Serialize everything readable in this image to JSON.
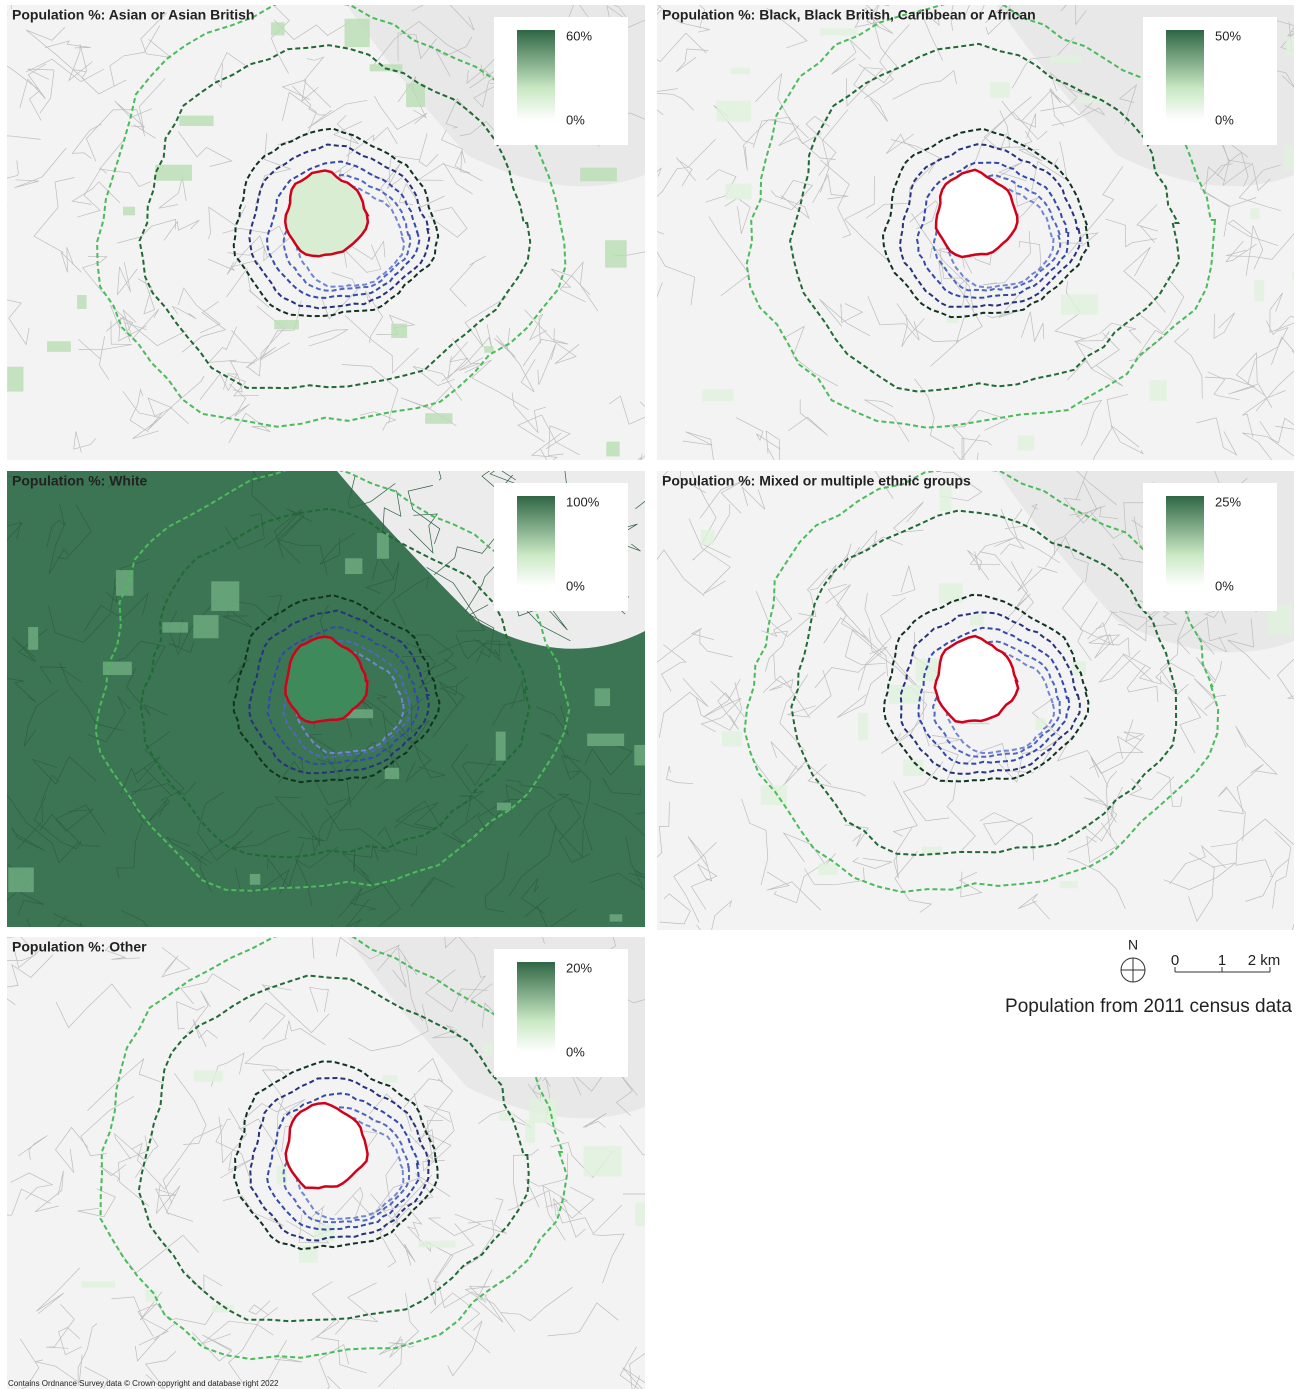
{
  "panels": [
    {
      "title": "Population %: Asian or Asian British",
      "legend": {
        "max": "60%",
        "min": "0%"
      }
    },
    {
      "title": "Population %: Black, Black British, Caribbean or African",
      "legend": {
        "max": "50%",
        "min": "0%"
      }
    },
    {
      "title": "Population %: White",
      "legend": {
        "max": "100%",
        "min": "0%"
      }
    },
    {
      "title": "Population %: Mixed or multiple ethnic groups",
      "legend": {
        "max": "25%",
        "min": "0%"
      }
    },
    {
      "title": "Population %: Other",
      "legend": {
        "max": "20%",
        "min": "0%"
      }
    }
  ],
  "north": "N",
  "scale_bar": {
    "labels": [
      "0",
      "1",
      "2 km"
    ]
  },
  "caption": "Population from 2011 census data",
  "attribution": "Contains Ordnance Survey data © Crown copyright and database right 2022"
}
